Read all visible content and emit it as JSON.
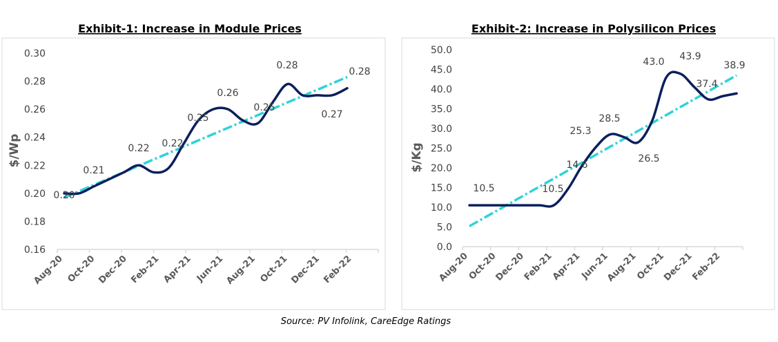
{
  "source": "Source: PV Infolink, CareEdge Ratings",
  "chart_data": [
    {
      "type": "line",
      "title": "Exhibit-1: Increase in Module Prices",
      "ylabel": "$/Wp",
      "xlabel": "",
      "ylim": [
        0.16,
        0.3
      ],
      "ystep": 0.02,
      "ytick_decimals": 2,
      "tick_labels": [
        "Aug-20",
        "Oct-20",
        "Dec-20",
        "Feb-21",
        "Apr-21",
        "Jun-21",
        "Aug-21",
        "Oct-21",
        "Dec-21",
        "Feb-22"
      ],
      "x": [
        "Aug-20",
        "Sep-20",
        "Oct-20",
        "Nov-20",
        "Dec-20",
        "Jan-21",
        "Feb-21",
        "Mar-21",
        "Apr-21",
        "May-21",
        "Jun-21",
        "Jul-21",
        "Aug-21",
        "Sep-21",
        "Oct-21",
        "Nov-21",
        "Dec-21",
        "Jan-22",
        "Feb-22",
        "Mar-22"
      ],
      "values": [
        0.2,
        0.2,
        0.205,
        0.21,
        0.215,
        0.22,
        0.215,
        0.218,
        0.235,
        0.252,
        0.26,
        0.26,
        0.252,
        0.25,
        0.265,
        0.278,
        0.27,
        0.27,
        0.27,
        0.275
      ],
      "data_labels": [
        "0.20",
        null,
        "0.21",
        null,
        null,
        "0.22",
        null,
        "0.22",
        null,
        "0.25",
        null,
        "0.26",
        null,
        "0.25",
        null,
        "0.28",
        null,
        null,
        "0.27",
        "0.28"
      ],
      "trendline": {
        "type": "linear",
        "start": 0.197,
        "end": 0.283
      },
      "grid": false,
      "colors": {
        "series": "#0b1f5c",
        "trend": "#2ed3d8"
      }
    },
    {
      "type": "line",
      "title": "Exhibit-2: Increase in Polysilicon Prices",
      "ylabel": "$/Kg",
      "xlabel": "",
      "ylim": [
        0,
        50
      ],
      "ystep": 5,
      "ytick_decimals": 1,
      "tick_labels": [
        "Aug-20",
        "Oct-20",
        "Dec-20",
        "Feb-21",
        "Apr-21",
        "Jun-21",
        "Aug-21",
        "Oct-21",
        "Dec-21",
        "Feb-22"
      ],
      "x": [
        "Aug-20",
        "Sep-20",
        "Oct-20",
        "Nov-20",
        "Dec-20",
        "Jan-21",
        "Feb-21",
        "Mar-21",
        "Apr-21",
        "May-21",
        "Jun-21",
        "Jul-21",
        "Aug-21",
        "Sep-21",
        "Oct-21",
        "Nov-21",
        "Dec-21",
        "Jan-22",
        "Feb-22",
        "Mar-22"
      ],
      "values": [
        10.5,
        10.5,
        10.5,
        10.5,
        10.5,
        10.5,
        10.5,
        14.6,
        20.5,
        25.3,
        28.5,
        27.8,
        26.5,
        32.0,
        43.0,
        43.9,
        40.5,
        37.4,
        38.2,
        38.9
      ],
      "data_labels": [
        "10.5",
        null,
        null,
        null,
        null,
        null,
        "10.5",
        "14.6",
        null,
        "25.3",
        "28.5",
        null,
        "26.5",
        null,
        "43.0",
        "43.9",
        null,
        "37.4",
        null,
        "38.9"
      ],
      "trendline": {
        "type": "linear",
        "start": 5.2,
        "end": 43.5
      },
      "grid": false,
      "colors": {
        "series": "#0b1f5c",
        "trend": "#2ed3d8"
      }
    }
  ]
}
